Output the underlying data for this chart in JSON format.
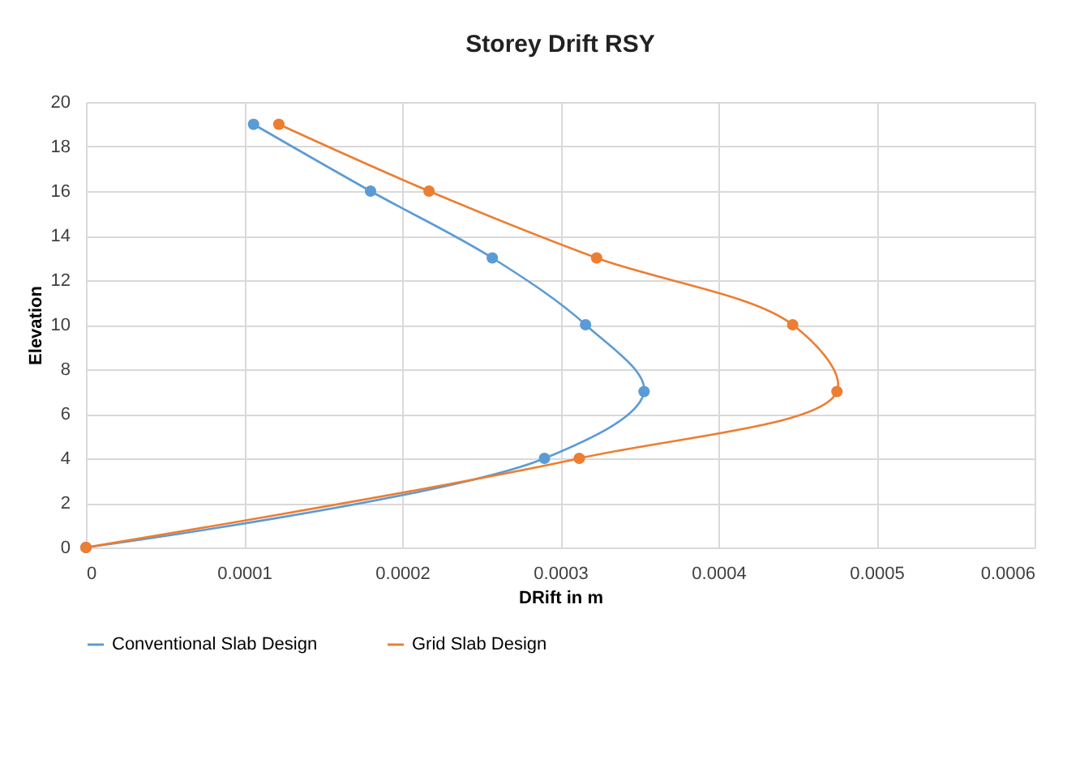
{
  "chart_data": {
    "type": "line",
    "title": "Storey Drift RSY",
    "xlabel": "DRift in m",
    "ylabel": "Elevation",
    "series": [
      {
        "name": "Conventional Slab Design",
        "color": "#5b9bd5",
        "x": [
          0,
          0.00029,
          0.000353,
          0.000316,
          0.000257,
          0.00018,
          0.000106
        ],
        "values": [
          0,
          4,
          7,
          10,
          13,
          16,
          19
        ]
      },
      {
        "name": "Grid Slab Design",
        "color": "#ed7d31",
        "x": [
          0,
          0.000312,
          0.000475,
          0.000447,
          0.000323,
          0.000217,
          0.000122
        ],
        "values": [
          0,
          4,
          7,
          10,
          13,
          16,
          19
        ]
      }
    ],
    "xlim": [
      0,
      0.0006
    ],
    "xticks": [
      0,
      0.0001,
      0.0002,
      0.0003,
      0.0004,
      0.0005,
      0.0006
    ],
    "ylim": [
      0,
      20
    ],
    "yticks": [
      0,
      2,
      4,
      6,
      8,
      10,
      12,
      14,
      16,
      18,
      20
    ],
    "grid": true,
    "legend": "bottom",
    "marker": "circle",
    "line_style": "solid"
  }
}
